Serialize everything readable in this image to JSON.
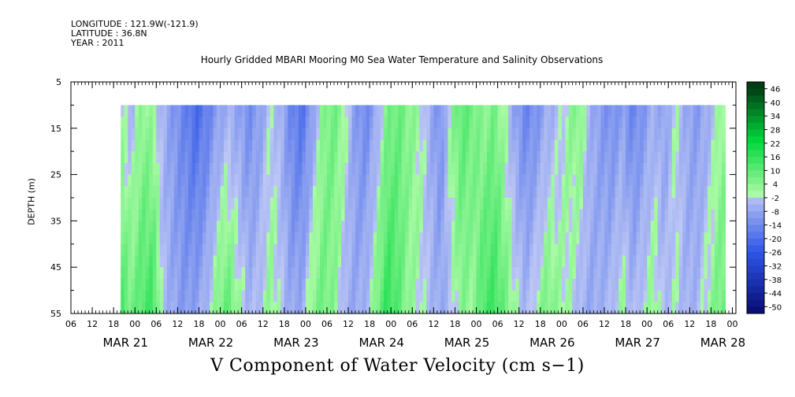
{
  "header": {
    "longitude": "LONGITUDE : 121.9W(-121.9)",
    "latitude": "LATITUDE : 36.8N",
    "year": "YEAR : 2011"
  },
  "chart_data": {
    "type": "heatmap",
    "title": "Hourly Gridded MBARI Mooring M0 Sea Water Temperature and Salinity Observations",
    "bottom_title": "V Component of Water Velocity (cm s−1)",
    "ylabel": "DEPTH (m)",
    "xlabel": "",
    "ylim": [
      5,
      55
    ],
    "y_reversed": true,
    "y_ticks": [
      5,
      15,
      25,
      35,
      45,
      55
    ],
    "x_range_hours": [
      0,
      187
    ],
    "x_hour_ticks": [
      "06",
      "12",
      "18",
      "00",
      "06",
      "12",
      "18",
      "00",
      "06",
      "12",
      "18",
      "00",
      "06",
      "12",
      "18",
      "00",
      "06",
      "12",
      "18",
      "00",
      "06",
      "12",
      "18",
      "00",
      "06",
      "12",
      "18",
      "00",
      "06",
      "12",
      "18",
      "00"
    ],
    "x_date_labels": [
      "MAR 21",
      "MAR 22",
      "MAR 23",
      "MAR 24",
      "MAR 25",
      "MAR 26",
      "MAR 27",
      "MAR 28"
    ],
    "data_depth_range": [
      10,
      55
    ],
    "data_time_start_hour": 14,
    "data_time_end_hour": 184,
    "colorbar": {
      "labels": [
        "46",
        "40",
        "34",
        "28",
        "22",
        "16",
        "10",
        "4",
        "-2",
        "-8",
        "-14",
        "-20",
        "-26",
        "-32",
        "-38",
        "-44",
        "-50"
      ],
      "min": -50,
      "max": 50,
      "step": 3
    },
    "column_profiles": [
      {
        "hour": 14,
        "top": 1,
        "bottom": 14
      },
      {
        "hour": 17,
        "top": -3,
        "bottom": 8
      },
      {
        "hour": 20,
        "top": 5,
        "bottom": 13
      },
      {
        "hour": 23,
        "top": 2,
        "bottom": 16
      },
      {
        "hour": 26,
        "top": -4,
        "bottom": -2
      },
      {
        "hour": 29,
        "top": -10,
        "bottom": -6
      },
      {
        "hour": 32,
        "top": -14,
        "bottom": -9
      },
      {
        "hour": 35,
        "top": -20,
        "bottom": -7
      },
      {
        "hour": 38,
        "top": -16,
        "bottom": -3
      },
      {
        "hour": 41,
        "top": -9,
        "bottom": 6
      },
      {
        "hour": 44,
        "top": -4,
        "bottom": 11
      },
      {
        "hour": 47,
        "top": -7,
        "bottom": 4
      },
      {
        "hour": 50,
        "top": -12,
        "bottom": -3
      },
      {
        "hour": 53,
        "top": -8,
        "bottom": -1
      },
      {
        "hour": 56,
        "top": 0,
        "bottom": 5
      },
      {
        "hour": 59,
        "top": -4,
        "bottom": 0
      },
      {
        "hour": 62,
        "top": -14,
        "bottom": -6
      },
      {
        "hour": 65,
        "top": -18,
        "bottom": -5
      },
      {
        "hour": 68,
        "top": -8,
        "bottom": 6
      },
      {
        "hour": 71,
        "top": 6,
        "bottom": 9
      },
      {
        "hour": 74,
        "top": 9,
        "bottom": 5
      },
      {
        "hour": 77,
        "top": 3,
        "bottom": -4
      },
      {
        "hour": 80,
        "top": -9,
        "bottom": -6
      },
      {
        "hour": 83,
        "top": -13,
        "bottom": -3
      },
      {
        "hour": 86,
        "top": -6,
        "bottom": 8
      },
      {
        "hour": 89,
        "top": 7,
        "bottom": 18
      },
      {
        "hour": 92,
        "top": 10,
        "bottom": 12
      },
      {
        "hour": 95,
        "top": 6,
        "bottom": 4
      },
      {
        "hour": 98,
        "top": 3,
        "bottom": 2
      },
      {
        "hour": 101,
        "top": -5,
        "bottom": -2
      },
      {
        "hour": 104,
        "top": -12,
        "bottom": -6
      },
      {
        "hour": 107,
        "top": 5,
        "bottom": -1
      },
      {
        "hour": 110,
        "top": 12,
        "bottom": 6
      },
      {
        "hour": 113,
        "top": 9,
        "bottom": 3
      },
      {
        "hour": 116,
        "top": 4,
        "bottom": 14
      },
      {
        "hour": 119,
        "top": 8,
        "bottom": 16
      },
      {
        "hour": 122,
        "top": 1,
        "bottom": 9
      },
      {
        "hour": 125,
        "top": -8,
        "bottom": 2
      },
      {
        "hour": 128,
        "top": -14,
        "bottom": -3
      },
      {
        "hour": 131,
        "top": -11,
        "bottom": 3
      },
      {
        "hour": 134,
        "top": -5,
        "bottom": 8
      },
      {
        "hour": 137,
        "top": -2,
        "bottom": 4
      },
      {
        "hour": 140,
        "top": 4,
        "bottom": 2
      },
      {
        "hour": 143,
        "top": 7,
        "bottom": -3
      },
      {
        "hour": 146,
        "top": -4,
        "bottom": -6
      },
      {
        "hour": 149,
        "top": -9,
        "bottom": -4
      },
      {
        "hour": 152,
        "top": -12,
        "bottom": -2
      },
      {
        "hour": 155,
        "top": -8,
        "bottom": 4
      },
      {
        "hour": 158,
        "top": -14,
        "bottom": -3
      },
      {
        "hour": 161,
        "top": -10,
        "bottom": 1
      },
      {
        "hour": 164,
        "top": -4,
        "bottom": 5
      },
      {
        "hour": 167,
        "top": -8,
        "bottom": -2
      },
      {
        "hour": 170,
        "top": 2,
        "bottom": 1
      },
      {
        "hour": 173,
        "top": -6,
        "bottom": -4
      },
      {
        "hour": 176,
        "top": -9,
        "bottom": -3
      },
      {
        "hour": 179,
        "top": -5,
        "bottom": 3
      },
      {
        "hour": 182,
        "top": 2,
        "bottom": 8
      },
      {
        "hour": 184,
        "top": 4,
        "bottom": 10
      }
    ]
  }
}
